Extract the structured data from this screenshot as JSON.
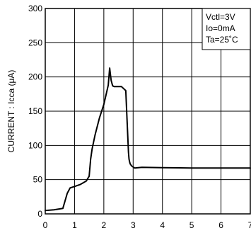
{
  "chart_data": {
    "type": "line",
    "title": "",
    "xlabel": "",
    "ylabel": "CURRENT : Icca (μA)",
    "xlim": [
      0,
      7
    ],
    "ylim": [
      0,
      300
    ],
    "x_ticks": [
      0,
      1,
      2,
      3,
      4,
      5,
      6,
      7
    ],
    "y_ticks": [
      0,
      50,
      100,
      150,
      200,
      250,
      300
    ],
    "grid": true,
    "legend_position": "top-right",
    "legend_lines": [
      "Vctl=3V",
      "Io=0mA",
      "Ta=25˚C"
    ],
    "series": [
      {
        "x": [
          0.0,
          0.3,
          0.6,
          0.75,
          0.85,
          1.0,
          1.2,
          1.4,
          1.5,
          1.55,
          1.6,
          1.7,
          1.85,
          2.0,
          2.15,
          2.2,
          2.25,
          2.3,
          2.35,
          2.45,
          2.6,
          2.75,
          2.8,
          2.84,
          2.86,
          2.88,
          2.9,
          2.95,
          3.05,
          3.3,
          4.0,
          5.0,
          6.0,
          7.0
        ],
        "y": [
          5,
          6,
          8,
          30,
          38,
          40,
          43,
          48,
          55,
          80,
          95,
          115,
          140,
          160,
          188,
          213,
          195,
          187,
          186,
          186,
          186,
          180,
          130,
          90,
          80,
          76,
          73,
          70,
          67,
          68,
          67.5,
          67,
          67,
          67
        ]
      }
    ]
  }
}
